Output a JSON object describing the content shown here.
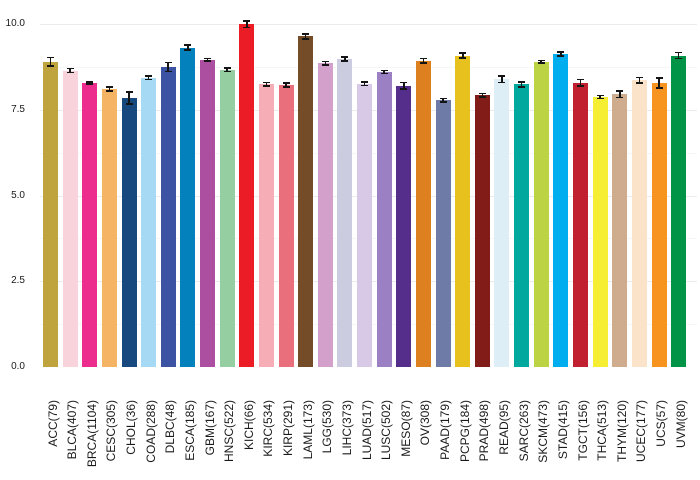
{
  "chart_data": {
    "type": "bar",
    "title": "",
    "legend": "none",
    "background_color": "#ffffff",
    "error_bar_color": "#141414",
    "x_axis": {
      "label": "",
      "tick_rotation_degrees": 90
    },
    "y_axis": {
      "label": "",
      "range": [
        0,
        10.5
      ],
      "tick_values": [
        0,
        2.5,
        5,
        7.5,
        10
      ],
      "tick_labels": [
        "0.0",
        "2.5",
        "5.0",
        "7.5",
        "10.0"
      ],
      "minor_gridline_values": [
        1.25,
        3.75,
        6.25,
        8.75
      ],
      "grid": "horizontal-light"
    },
    "categories": [
      "ACC(79)",
      "BLCA(407)",
      "BRCA(1104)",
      "CESC(305)",
      "CHOL(36)",
      "COAD(288)",
      "DLBC(48)",
      "ESCA(185)",
      "GBM(167)",
      "HNSC(522)",
      "KICH(66)",
      "KIRC(534)",
      "KIRP(291)",
      "LAML(173)",
      "LGG(530)",
      "LIHC(373)",
      "LUAD(517)",
      "LUSC(502)",
      "MESO(87)",
      "OV(308)",
      "PAAD(179)",
      "PCPG(184)",
      "PRAD(498)",
      "READ(95)",
      "SARC(263)",
      "SKCM(473)",
      "STAD(415)",
      "TGCT(156)",
      "THCA(513)",
      "THYM(120)",
      "UCEC(177)",
      "UCS(57)",
      "UVM(80)"
    ],
    "values": [
      8.9,
      8.64,
      8.28,
      8.1,
      7.84,
      8.43,
      8.75,
      9.31,
      8.96,
      8.66,
      9.99,
      8.24,
      8.22,
      9.64,
      8.86,
      8.98,
      8.26,
      8.6,
      8.2,
      8.93,
      7.78,
      9.08,
      7.92,
      8.39,
      8.24,
      8.9,
      9.12,
      8.29,
      7.87,
      7.95,
      8.36,
      8.28,
      9.08
    ],
    "errors": [
      0.12,
      0.06,
      0.03,
      0.06,
      0.17,
      0.05,
      0.13,
      0.07,
      0.04,
      0.05,
      0.09,
      0.05,
      0.06,
      0.07,
      0.05,
      0.06,
      0.05,
      0.04,
      0.09,
      0.06,
      0.05,
      0.07,
      0.05,
      0.1,
      0.07,
      0.04,
      0.06,
      0.09,
      0.04,
      0.09,
      0.08,
      0.15,
      0.09
    ],
    "colors": [
      "#bfa33c",
      "#f9d3dc",
      "#ec2d8e",
      "#f4b464",
      "#17497e",
      "#a6daf4",
      "#3c53a4",
      "#0381bd",
      "#ad4fa1",
      "#95cfa1",
      "#ec1c26",
      "#f6adb6",
      "#ea6f7d",
      "#744c28",
      "#d3a0cc",
      "#cbccdf",
      "#d8c9e7",
      "#9b80c4",
      "#552d8a",
      "#dd8120",
      "#6e7ba6",
      "#e7c11d",
      "#811c19",
      "#ddeef7",
      "#00a89d",
      "#bcd443",
      "#00aeef",
      "#c0202f",
      "#f5ee33",
      "#cfac8e",
      "#fae3c8",
      "#f7941f",
      "#019346"
    ]
  }
}
